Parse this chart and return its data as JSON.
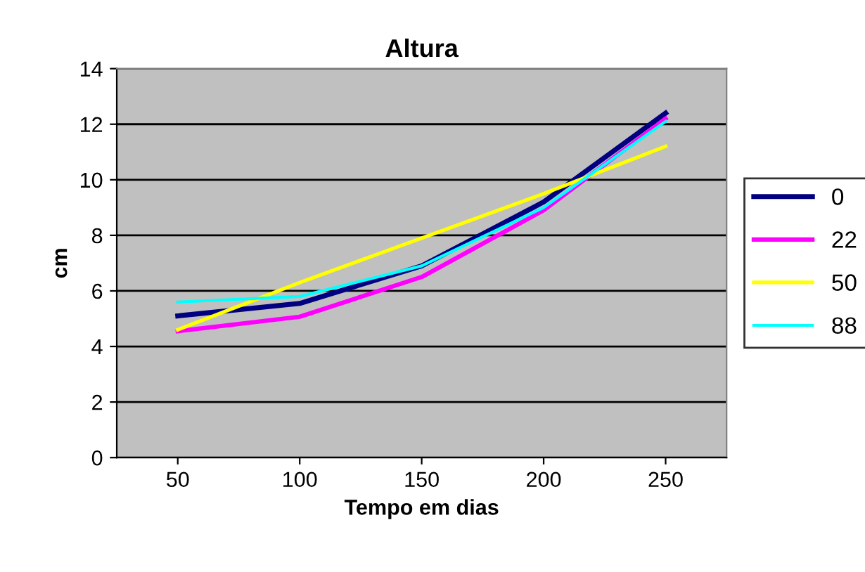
{
  "chart_data": {
    "type": "line",
    "title": "Altura",
    "xlabel": "Tempo em dias",
    "ylabel": "cm",
    "categories": [
      "50",
      "100",
      "150",
      "200",
      "250"
    ],
    "series": [
      {
        "name": "0",
        "color": "#000080",
        "values": [
          5.1,
          5.55,
          6.9,
          9.2,
          12.4
        ]
      },
      {
        "name": "22",
        "color": "#ff00ff",
        "values": [
          4.55,
          5.07,
          6.5,
          8.9,
          12.2
        ]
      },
      {
        "name": "50",
        "color": "#ffff00",
        "values": [
          4.6,
          6.3,
          7.9,
          9.5,
          11.2
        ]
      },
      {
        "name": "88",
        "color": "#00ffff",
        "values": [
          5.6,
          5.8,
          6.9,
          9.0,
          12.1
        ]
      }
    ],
    "ylim": [
      0,
      14
    ],
    "yticks": [
      0,
      2,
      4,
      6,
      8,
      10,
      12,
      14
    ],
    "grid": "y",
    "legend": "right",
    "marker": "none",
    "line_style": "solid"
  }
}
